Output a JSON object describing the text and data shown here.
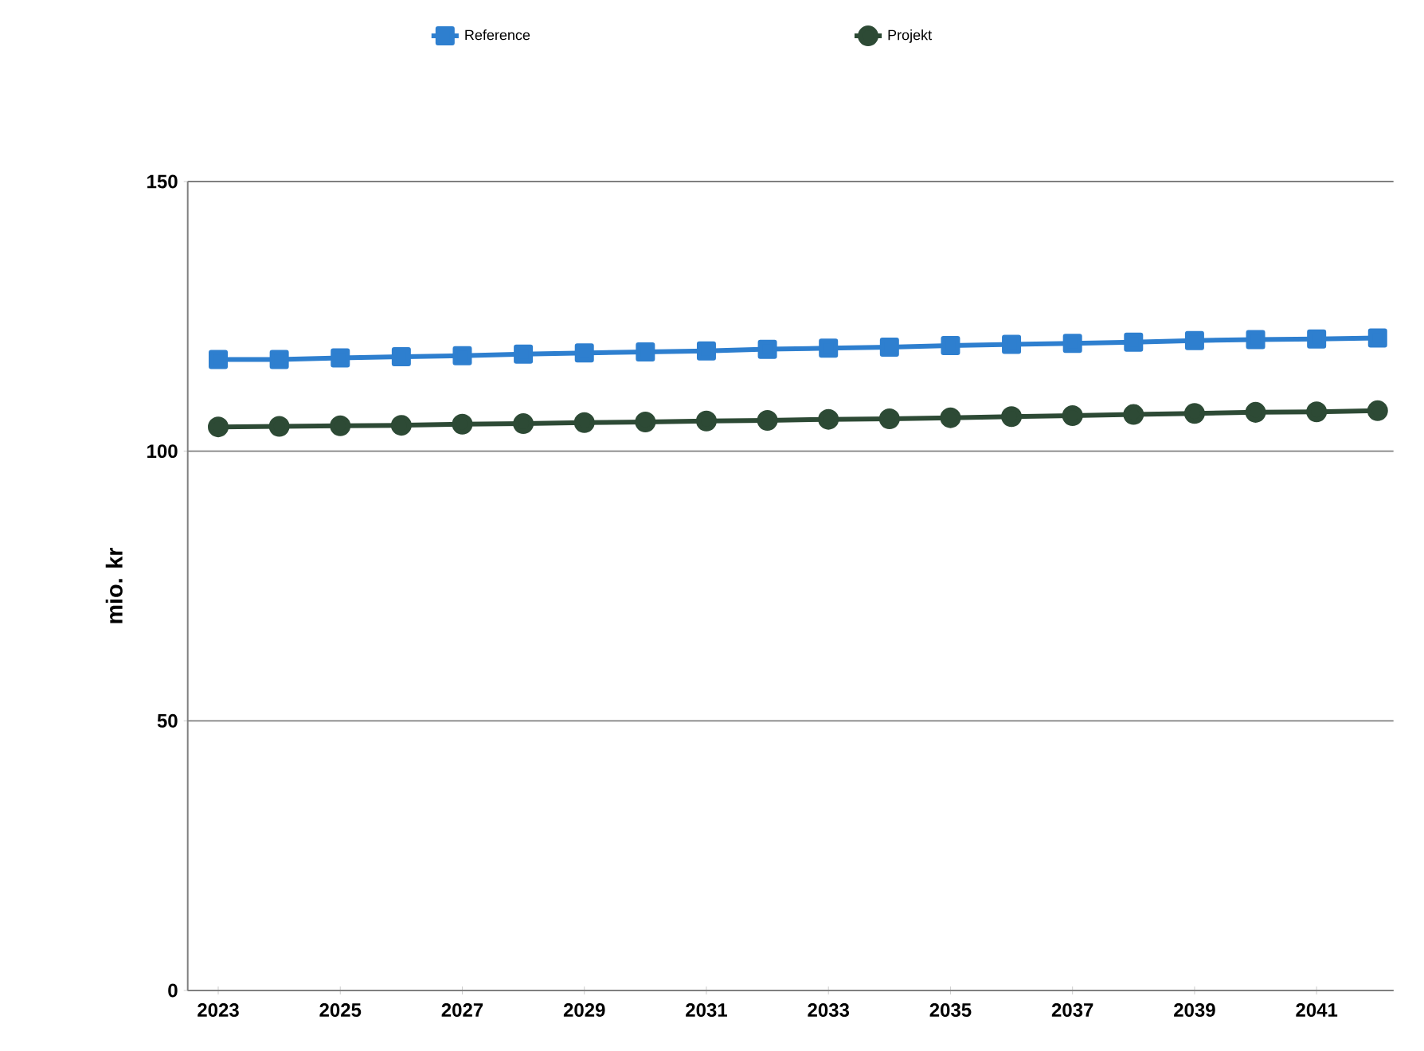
{
  "chart_data": {
    "type": "line",
    "ylabel": "mio. kr",
    "categories": [
      "2023",
      null,
      "2025",
      null,
      "2027",
      null,
      "2029",
      null,
      "2031",
      null,
      "2033",
      null,
      "2035",
      null,
      "2037",
      null,
      "2039",
      null,
      "2041",
      null
    ],
    "series": [
      {
        "name": "Reference",
        "color": "#2e7fcf",
        "marker": "square",
        "values": [
          117,
          117,
          117.3,
          117.5,
          117.7,
          118,
          118.2,
          118.4,
          118.6,
          118.9,
          119.1,
          119.3,
          119.6,
          119.8,
          120,
          120.2,
          120.5,
          120.7,
          120.8,
          121
        ]
      },
      {
        "name": "Projekt",
        "color": "#2d4a35",
        "marker": "circle",
        "values": [
          104.5,
          104.6,
          104.7,
          104.8,
          105,
          105.1,
          105.3,
          105.4,
          105.6,
          105.7,
          105.9,
          106,
          106.2,
          106.4,
          106.6,
          106.8,
          107,
          107.2,
          107.3,
          107.5
        ]
      }
    ],
    "ylim": [
      0,
      150
    ],
    "yticks": [
      0,
      50,
      100,
      150
    ],
    "grid": "y",
    "legend": "top"
  }
}
